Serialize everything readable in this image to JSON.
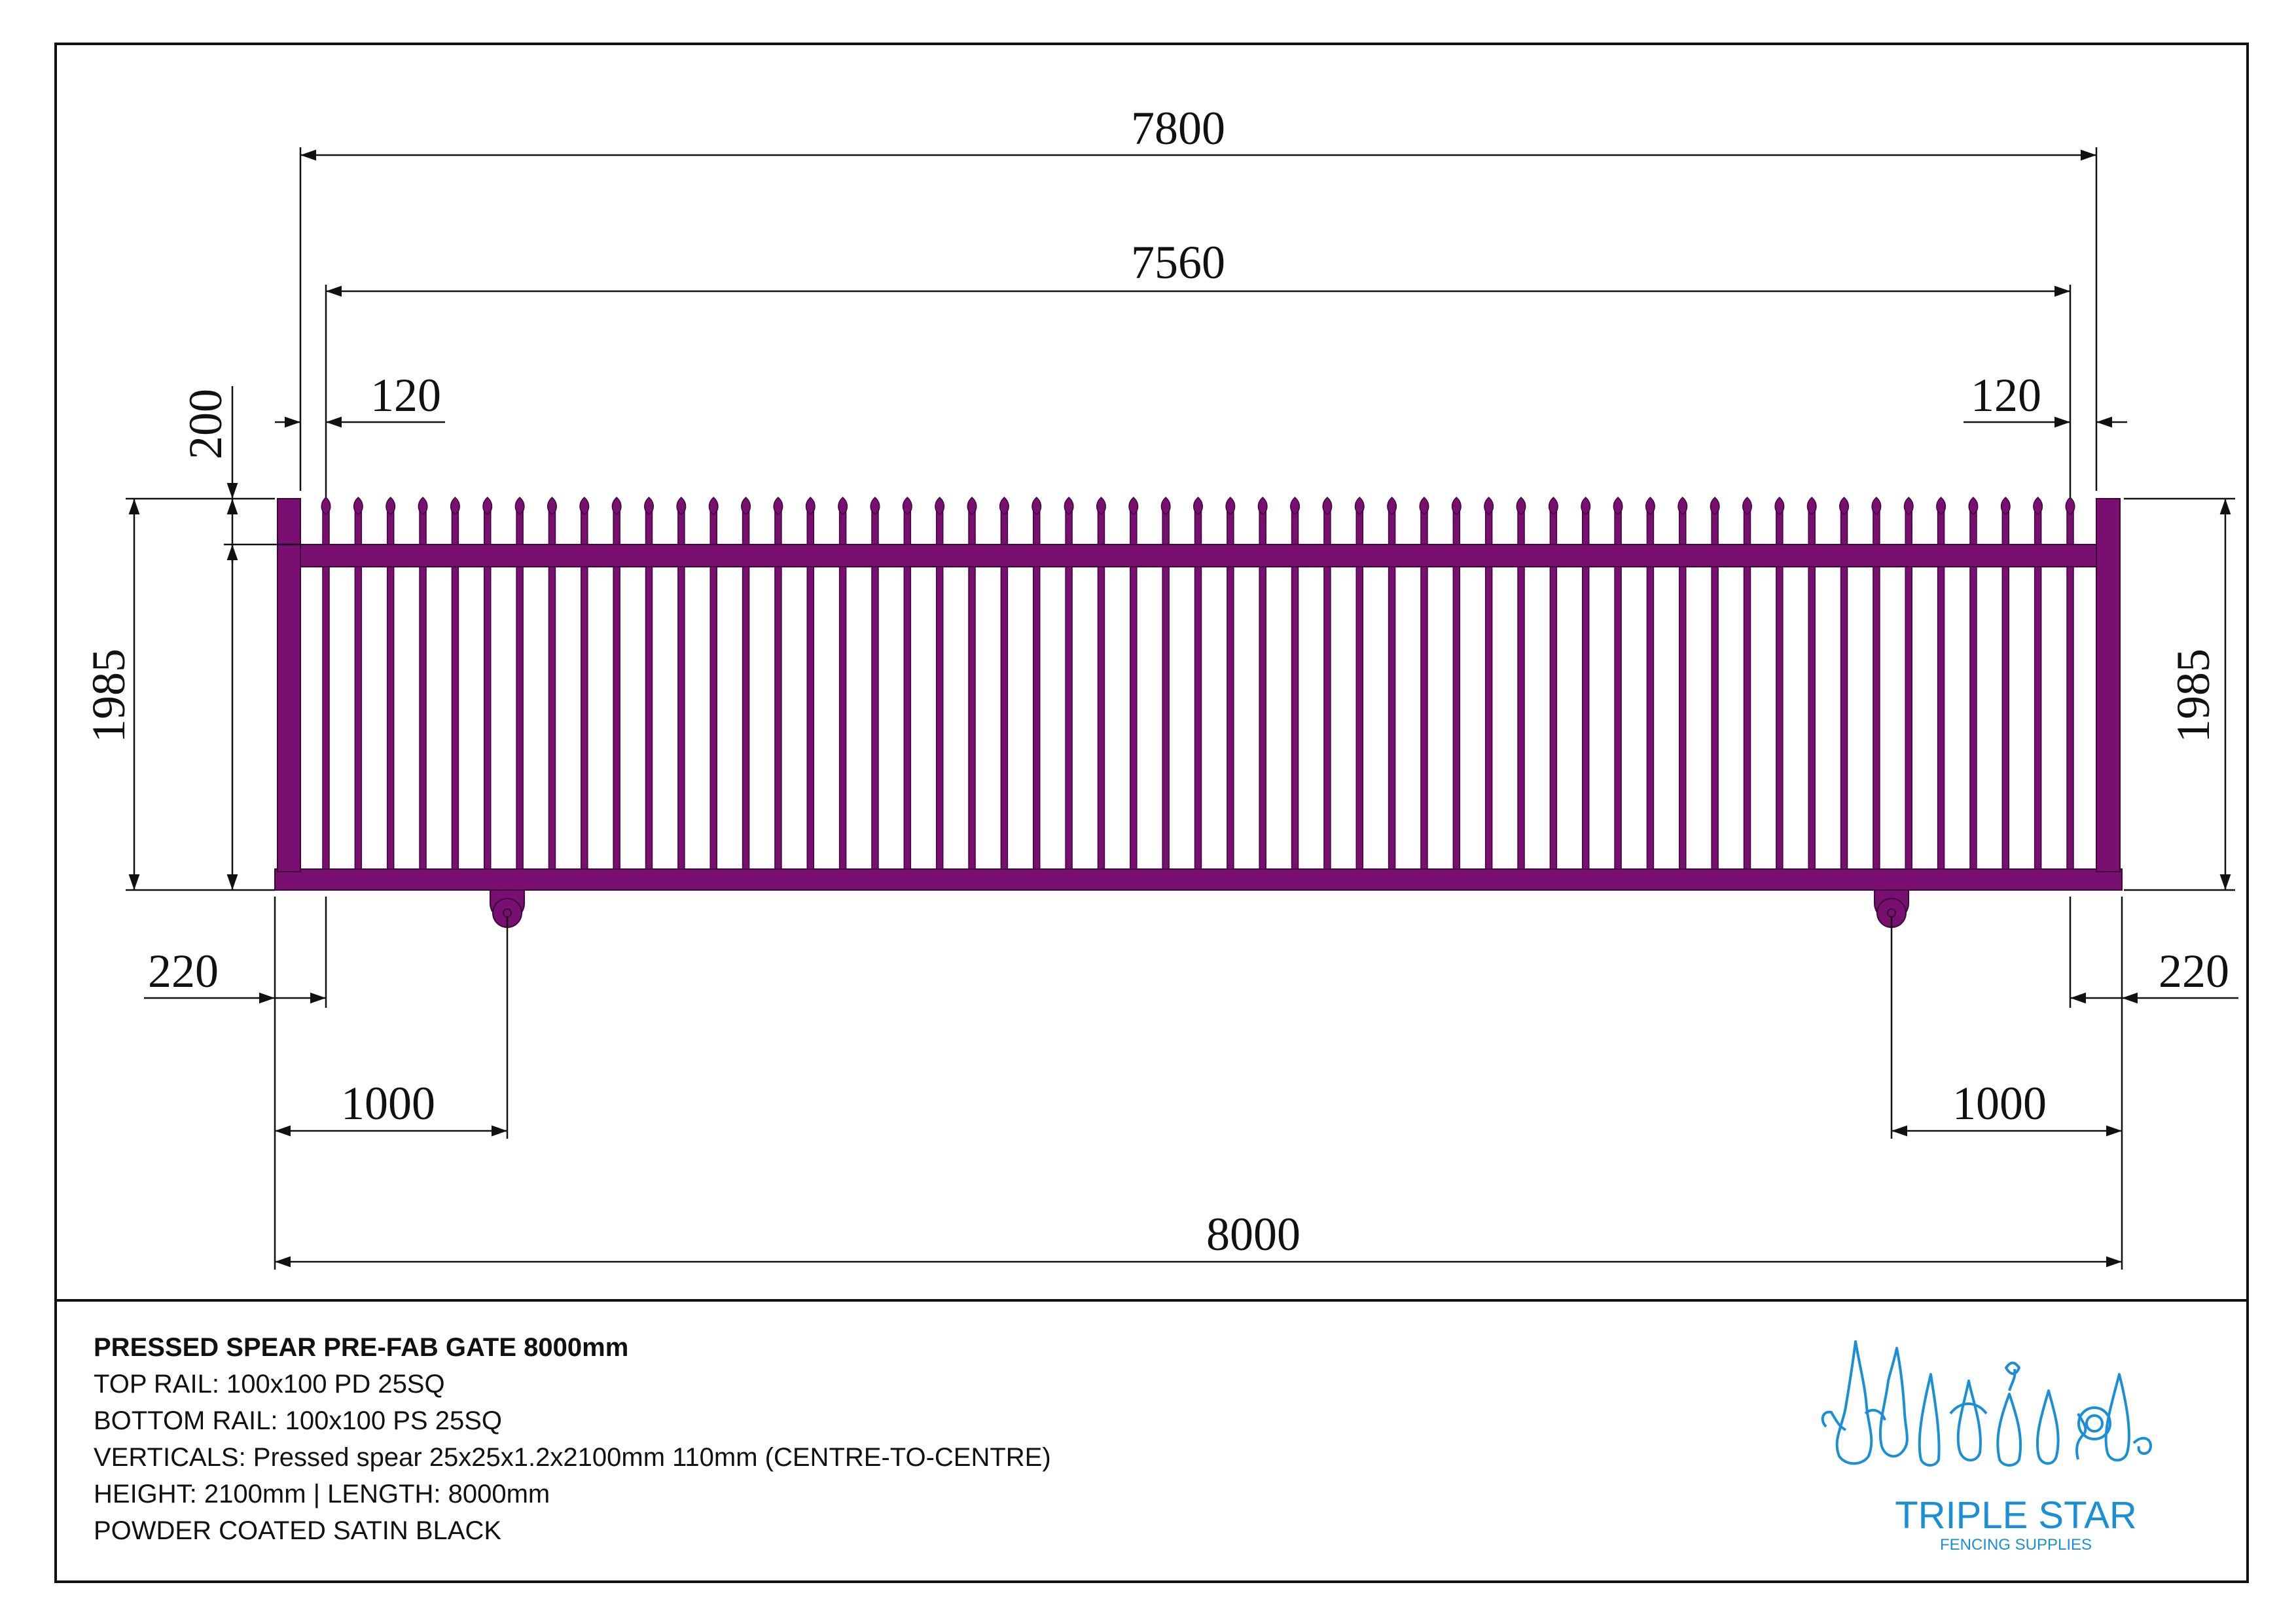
{
  "drawing": {
    "dimensions": {
      "overall_top": "7800",
      "inner_top": "7560",
      "left_offset_top": "120",
      "right_offset_top": "120",
      "spear_height": "200",
      "height_left": "1985",
      "height_right": "1985",
      "left_offset_bottom": "220",
      "right_offset_bottom": "220",
      "wheel_left": "1000",
      "wheel_right": "1000",
      "overall_bottom": "8000"
    },
    "colors": {
      "gate": "#7a0f72",
      "gate_stroke": "#3d0639",
      "line": "#111111",
      "logo": "#1b8fd6"
    },
    "picket_count": 55
  },
  "specs": {
    "title": "PRESSED SPEAR PRE-FAB GATE 8000mm",
    "top_rail": "TOP RAIL: 100x100 PD 25SQ",
    "bottom_rail": "BOTTOM RAIL: 100x100 PS 25SQ",
    "verticals": "VERTICALS: Pressed spear 25x25x1.2x2100mm 110mm (CENTRE-TO-CENTRE)",
    "size": "HEIGHT: 2100mm | LENGTH: 8000mm",
    "finish": "POWDER COATED SATIN BLACK"
  },
  "logo": {
    "name": "TRIPLE STAR",
    "tagline": "FENCING SUPPLIES",
    "icon": "spear-heads-icon"
  }
}
